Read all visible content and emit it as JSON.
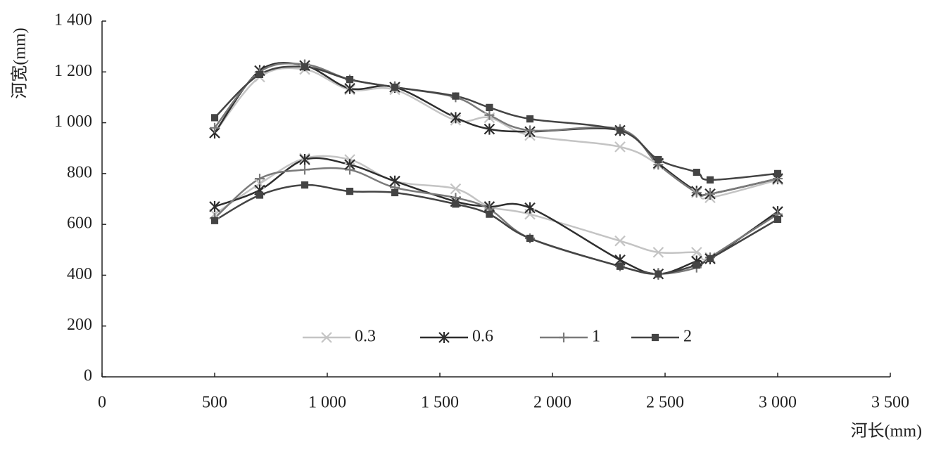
{
  "chart_data": {
    "type": "line",
    "x_label": "河长(mm)",
    "y_label": "河宽(mm)",
    "x": [
      500,
      700,
      900,
      1100,
      1300,
      1570,
      1720,
      1900,
      2300,
      2470,
      2640,
      2700,
      3000
    ],
    "xlim": [
      0,
      3500
    ],
    "xticks": [
      0,
      500,
      {
        "value": 1000,
        "label": "1 000"
      },
      {
        "value": 1500,
        "label": "1 500"
      },
      {
        "value": 2000,
        "label": "2 000"
      },
      {
        "value": 2500,
        "label": "2 500"
      },
      {
        "value": 3000,
        "label": "3 000"
      },
      {
        "value": 3500,
        "label": "3 500"
      }
    ],
    "ylim": [
      0,
      1400
    ],
    "yticks": [
      0,
      200,
      400,
      600,
      800,
      {
        "value": 1000,
        "label": "1 000"
      },
      {
        "value": 1200,
        "label": "1 200"
      },
      {
        "value": 1400,
        "label": "1 400"
      }
    ],
    "legend": "bottom",
    "series": [
      {
        "name": "0.3",
        "color": "#c4c4c4",
        "marker": "x",
        "values": [
          [
            960,
            1180,
            1210,
            1130,
            1130,
            1010,
            1020,
            950,
            905,
            835,
            725,
            705,
            775
          ],
          [
            640,
            760,
            860,
            855,
            770,
            740,
            670,
            640,
            535,
            490,
            490,
            470,
            650
          ]
        ]
      },
      {
        "name": "0.6",
        "color": "#2e2e2e",
        "marker": "asterisk",
        "values": [
          [
            960,
            1205,
            1225,
            1135,
            1140,
            1020,
            975,
            965,
            970,
            840,
            730,
            720,
            780
          ],
          [
            670,
            735,
            855,
            835,
            770,
            690,
            670,
            665,
            460,
            405,
            455,
            465,
            650
          ]
        ]
      },
      {
        "name": "1",
        "color": "#7a7a7a",
        "marker": "plus",
        "values": [
          [
            980,
            1200,
            1230,
            1170,
            1140,
            1100,
            1030,
            970,
            975,
            835,
            725,
            720,
            780
          ],
          [
            625,
            780,
            815,
            815,
            745,
            705,
            660,
            545,
            435,
            405,
            430,
            470,
            640
          ]
        ]
      },
      {
        "name": "2",
        "color": "#444444",
        "marker": "square",
        "values": [
          [
            1020,
            1190,
            1220,
            1170,
            1140,
            1105,
            1060,
            1015,
            970,
            855,
            805,
            775,
            800
          ],
          [
            615,
            715,
            755,
            730,
            725,
            680,
            640,
            545,
            435,
            405,
            440,
            465,
            620
          ]
        ]
      }
    ]
  }
}
